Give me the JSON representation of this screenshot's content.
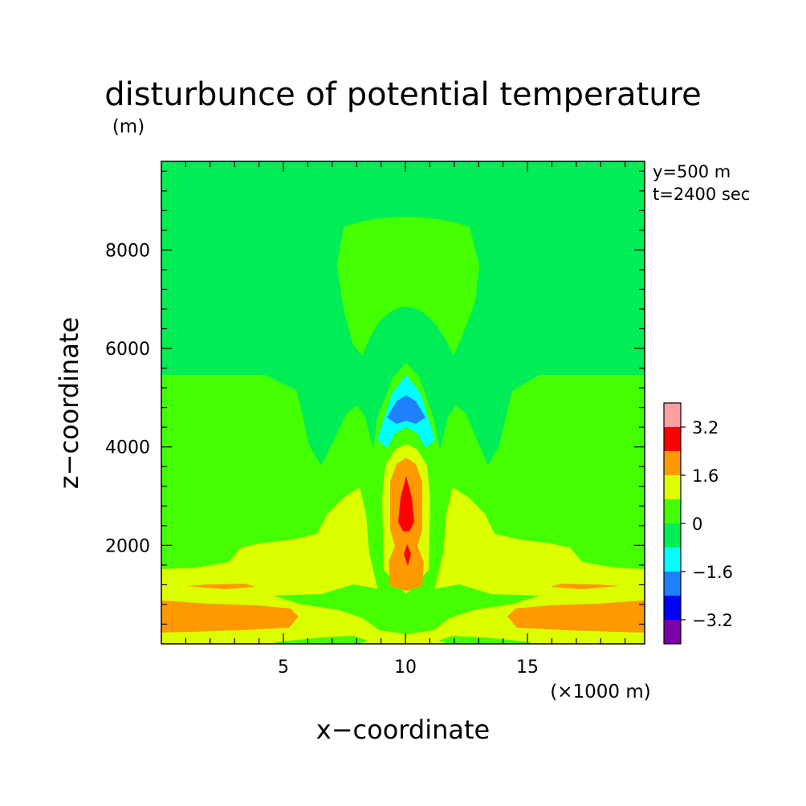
{
  "chart_data": {
    "type": "heatmap",
    "title": "disturbunce of potential temperature",
    "ylabel": "z−coordinate",
    "xlabel": "x−coordinate",
    "yunit": "(m)",
    "xunit": "(×1000 m)",
    "annotations": [
      "y=500 m",
      "t=2400 sec"
    ],
    "xlim": [
      0,
      19.8
    ],
    "ylim": [
      0,
      9800
    ],
    "xticks": [
      5,
      10,
      15
    ],
    "xtick_labels": [
      "5",
      "10",
      "15"
    ],
    "yticks": [
      2000,
      4000,
      6000,
      8000
    ],
    "ytick_labels": [
      "2000",
      "4000",
      "6000",
      "8000"
    ],
    "colorbar": {
      "levels": [
        -4.0,
        -3.2,
        -2.4,
        -1.6,
        -0.8,
        0,
        0.8,
        1.6,
        2.4,
        3.2,
        4.0
      ],
      "colors": [
        "#7b00a8",
        "#0000ff",
        "#1e7fff",
        "#00ffff",
        "#00ee55",
        "#44ff00",
        "#dcff00",
        "#ff9900",
        "#ff0000",
        "#ff9f9f"
      ],
      "tick_labels": [
        "3.2",
        "1.6",
        "0",
        "−1.6",
        "−3.2"
      ]
    },
    "background_level": "0 to 0.8 (green)",
    "regions": [
      {
        "feature": "upper lobe",
        "level": 0.4,
        "approx_x": [
          7.6,
          13.1
        ],
        "approx_z": [
          6000,
          8700
        ]
      },
      {
        "feature": "lower outer band",
        "level": 0.4,
        "approx_x": [
          0,
          19.8
        ],
        "approx_z": [
          1600,
          5600
        ]
      },
      {
        "feature": "surface warm layer",
        "level": 1.2,
        "approx_x": [
          0,
          19.8
        ],
        "approx_z": [
          0,
          1700
        ]
      },
      {
        "feature": "warm band",
        "level": 2.0,
        "approx_x": [
          0,
          19.8
        ],
        "approx_z": [
          300,
          900
        ]
      },
      {
        "feature": "central cold anomaly",
        "level": -1.2,
        "approx_x": [
          9.0,
          11.3
        ],
        "approx_z": [
          4000,
          5600
        ]
      },
      {
        "feature": "central cold core",
        "level": -2.0,
        "approx_x": [
          9.6,
          10.8
        ],
        "approx_z": [
          4600,
          5100
        ]
      },
      {
        "feature": "central warm core",
        "level": 3.0,
        "approx_x": [
          9.7,
          10.6
        ],
        "approx_z": [
          1700,
          3400
        ]
      }
    ]
  }
}
